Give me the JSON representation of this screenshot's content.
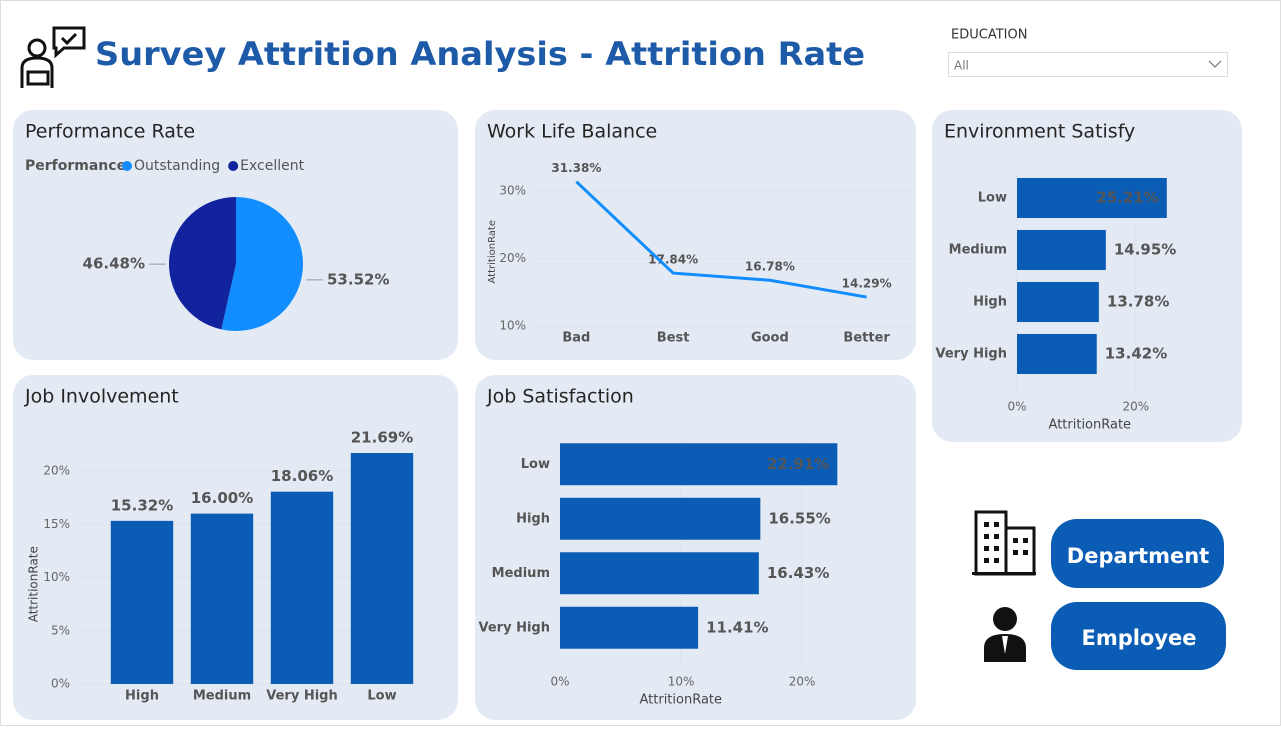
{
  "header": {
    "title": "Survey Attrition Analysis - Attrition Rate"
  },
  "slicer": {
    "label": "EDUCATION",
    "value": "All"
  },
  "buttons": [
    "Department",
    "Employee"
  ],
  "chart_data": [
    {
      "type": "pie",
      "title": "Performance Rate",
      "legend_title": "Performance",
      "categories": [
        "Outstanding",
        "Excellent"
      ],
      "values": [
        53.52,
        46.48
      ],
      "value_labels": [
        "53.52%",
        "46.48%"
      ],
      "colors": [
        "#118dff",
        "#12239e"
      ]
    },
    {
      "type": "line",
      "title": "Work Life Balance",
      "y_label": "AttritionRate",
      "categories": [
        "Bad",
        "Best",
        "Good",
        "Better"
      ],
      "values": [
        31.38,
        17.84,
        16.78,
        14.29
      ],
      "value_labels": [
        "31.38%",
        "17.84%",
        "16.78%",
        "14.29%"
      ],
      "color": "#118dff",
      "ylim": [
        10,
        32
      ],
      "yticks": [
        {
          "value": 10,
          "label": "10%"
        },
        {
          "value": 20,
          "label": "20%"
        },
        {
          "value": 30,
          "label": "30%"
        }
      ],
      "grid": true
    },
    {
      "type": "hbar",
      "title": "Environment Satisfy",
      "x_label": "AttritionRate",
      "categories": [
        "Low",
        "Medium",
        "High",
        "Very High"
      ],
      "values": [
        25.21,
        14.95,
        13.78,
        13.42
      ],
      "value_labels": [
        "25.21%",
        "14.95%",
        "13.78%",
        "13.42%"
      ],
      "color": "#0b5cb5",
      "xlim": [
        0,
        35
      ],
      "xticks": [
        {
          "value": 0,
          "label": "0%"
        },
        {
          "value": 20,
          "label": "20%"
        }
      ],
      "grid": true
    },
    {
      "type": "bar",
      "title": "Job Involvement",
      "y_label": "AttritionRate",
      "categories": [
        "High",
        "Medium",
        "Very High",
        "Low"
      ],
      "values": [
        15.32,
        16.0,
        18.06,
        21.69
      ],
      "value_labels": [
        "15.32%",
        "16.00%",
        "18.06%",
        "21.69%"
      ],
      "color": "#0b5cb5",
      "ylim": [
        0,
        22.5
      ],
      "yticks": [
        {
          "value": 0,
          "label": "0%"
        },
        {
          "value": 5,
          "label": "5%"
        },
        {
          "value": 10,
          "label": "10%"
        },
        {
          "value": 15,
          "label": "15%"
        },
        {
          "value": 20,
          "label": "20%"
        }
      ],
      "grid": true
    },
    {
      "type": "hbar",
      "title": "Job Satisfaction",
      "x_label": "AttritionRate",
      "categories": [
        "Low",
        "High",
        "Medium",
        "Very High"
      ],
      "values": [
        22.91,
        16.55,
        16.43,
        11.41
      ],
      "value_labels": [
        "22.91%",
        "16.55%",
        "16.43%",
        "11.41%"
      ],
      "color": "#0b5cb5",
      "xlim": [
        0,
        28.5
      ],
      "xticks": [
        {
          "value": 0,
          "label": "0%"
        },
        {
          "value": 10,
          "label": "10%"
        },
        {
          "value": 20,
          "label": "20%"
        }
      ],
      "grid": true
    }
  ]
}
